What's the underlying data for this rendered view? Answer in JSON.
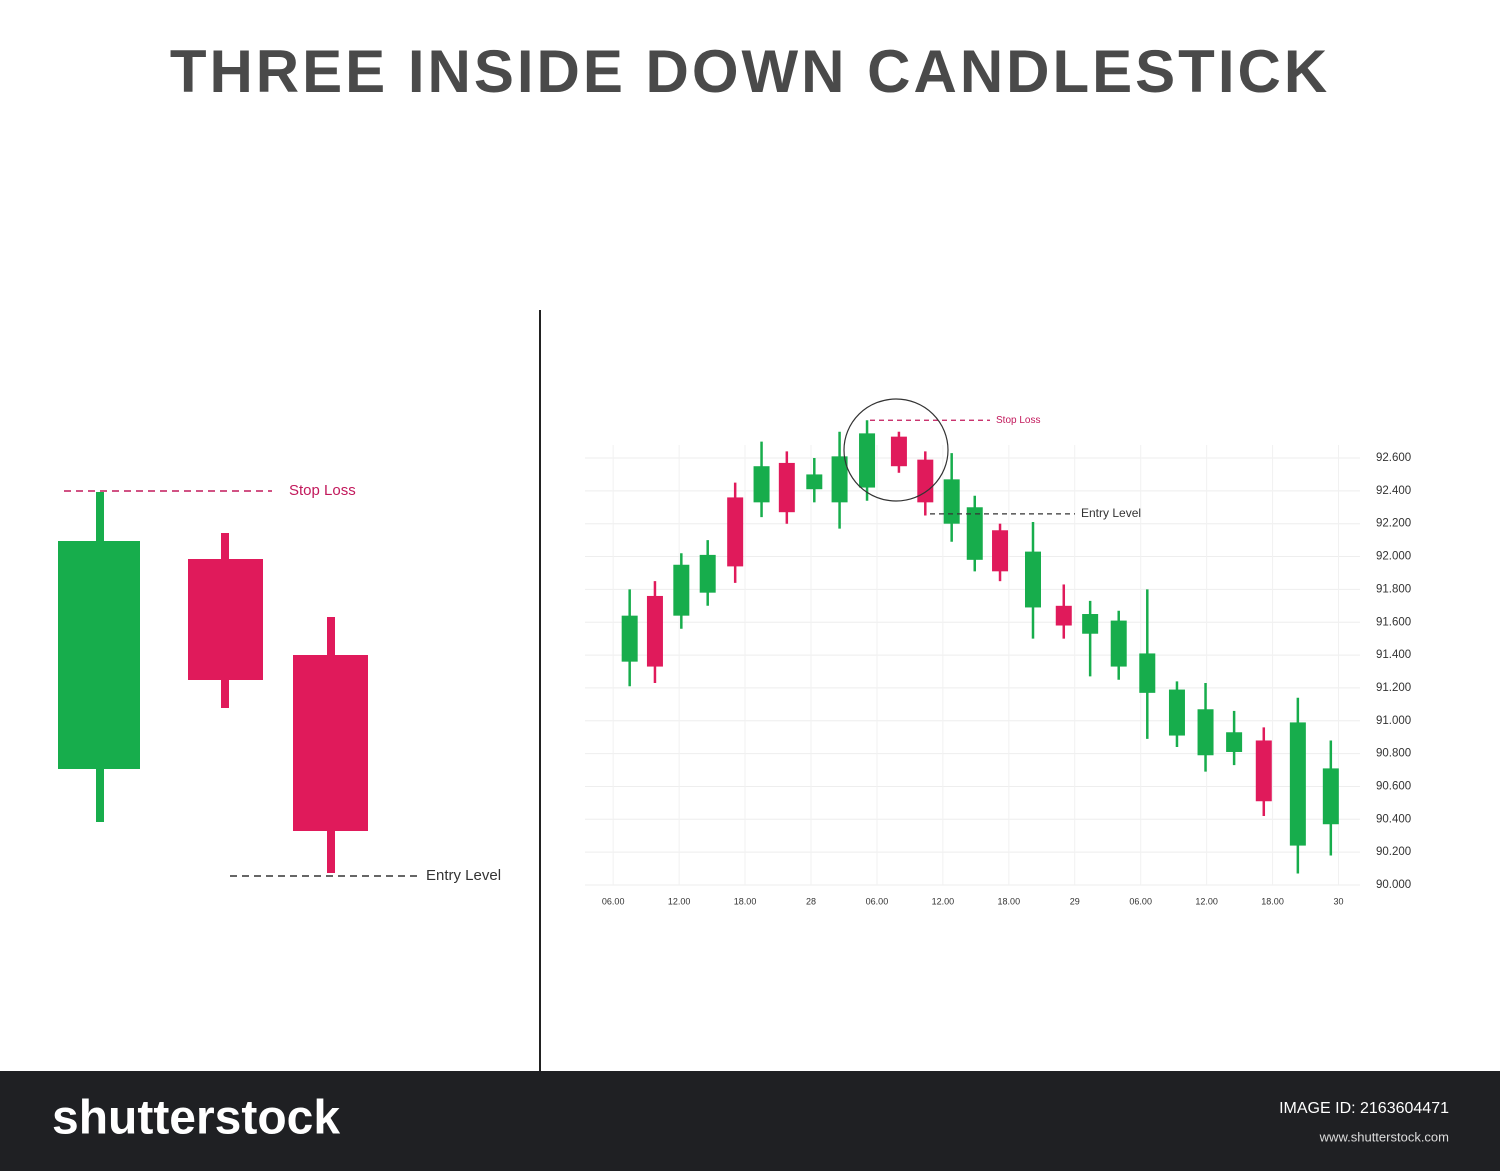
{
  "header": {
    "title": "THREE INSIDE DOWN CANDLESTICK"
  },
  "illustration": {
    "stop_loss_label": "Stop Loss",
    "entry_label": "Entry Level"
  },
  "chart_data": {
    "type": "candlestick",
    "x": [
      1.5,
      3.8,
      6.2,
      8.6,
      11.1,
      13.5,
      15.8,
      18.3,
      20.6,
      23.1,
      26.0,
      28.4,
      30.8,
      32.9,
      35.2,
      38.2,
      41.0,
      43.4,
      46.0,
      48.6,
      51.3,
      53.9,
      56.5,
      59.2,
      62.3,
      65.3
    ],
    "open": [
      91.36,
      91.76,
      91.64,
      91.78,
      92.36,
      92.33,
      92.57,
      92.41,
      92.33,
      92.42,
      92.73,
      92.59,
      92.2,
      91.98,
      92.16,
      91.69,
      91.7,
      91.53,
      91.33,
      91.17,
      90.91,
      90.79,
      90.81,
      90.88,
      90.24,
      90.37
    ],
    "high": [
      91.8,
      91.85,
      92.02,
      92.1,
      92.45,
      92.7,
      92.64,
      92.6,
      92.76,
      92.83,
      92.76,
      92.64,
      92.63,
      92.37,
      92.2,
      92.21,
      91.83,
      91.73,
      91.67,
      91.8,
      91.24,
      91.23,
      91.06,
      90.96,
      91.14,
      90.88
    ],
    "low": [
      91.21,
      91.23,
      91.56,
      91.7,
      91.84,
      92.24,
      92.2,
      92.33,
      92.17,
      92.34,
      92.51,
      92.25,
      92.09,
      91.91,
      91.85,
      91.5,
      91.5,
      91.27,
      91.25,
      90.89,
      90.84,
      90.69,
      90.73,
      90.42,
      90.07,
      90.18
    ],
    "close": [
      91.64,
      91.33,
      91.95,
      92.01,
      91.94,
      92.55,
      92.27,
      92.5,
      92.61,
      92.75,
      92.55,
      92.33,
      92.47,
      92.3,
      91.91,
      92.03,
      91.58,
      91.65,
      91.61,
      91.41,
      91.19,
      91.07,
      90.93,
      90.51,
      90.99,
      90.71
    ],
    "up_color": "#17ad4c",
    "down_color": "#e01a5b",
    "xlim": [
      -1.2,
      67.5
    ],
    "xticks": [
      {
        "value": 0,
        "label": "06.00"
      },
      {
        "value": 6,
        "label": "12.00"
      },
      {
        "value": 12,
        "label": "18.00"
      },
      {
        "value": 18,
        "label": "28"
      },
      {
        "value": 24,
        "label": "06.00"
      },
      {
        "value": 30,
        "label": "12.00"
      },
      {
        "value": 36,
        "label": "18.00"
      },
      {
        "value": 42,
        "label": "29"
      },
      {
        "value": 48,
        "label": "06.00"
      },
      {
        "value": 54,
        "label": "12.00"
      },
      {
        "value": 60,
        "label": "18.00"
      },
      {
        "value": 66,
        "label": "30"
      }
    ],
    "ylim": [
      90.0,
      92.6
    ],
    "yticks": [
      {
        "value": 90.0,
        "label": "90.000"
      },
      {
        "value": 90.2,
        "label": "90.200"
      },
      {
        "value": 90.4,
        "label": "90.400"
      },
      {
        "value": 90.6,
        "label": "90.600"
      },
      {
        "value": 90.8,
        "label": "90.800"
      },
      {
        "value": 91.0,
        "label": "91.000"
      },
      {
        "value": 91.2,
        "label": "91.200"
      },
      {
        "value": 91.4,
        "label": "91.400"
      },
      {
        "value": 91.6,
        "label": "91.600"
      },
      {
        "value": 91.8,
        "label": "91.800"
      },
      {
        "value": 92.0,
        "label": "92.000"
      },
      {
        "value": 92.2,
        "label": "92.200"
      },
      {
        "value": 92.4,
        "label": "92.400"
      },
      {
        "value": 92.6,
        "label": "92.600"
      }
    ],
    "grid": true,
    "annotations": [
      {
        "text": "Stop Loss",
        "value": 92.83,
        "color": "#c2185b"
      },
      {
        "text": "Entry Level",
        "value": 92.26,
        "color": "#333333"
      }
    ]
  },
  "footer": {
    "brand": "shutterstock",
    "image_id": "IMAGE ID: 2163604471",
    "url": "www.shutterstock.com"
  }
}
